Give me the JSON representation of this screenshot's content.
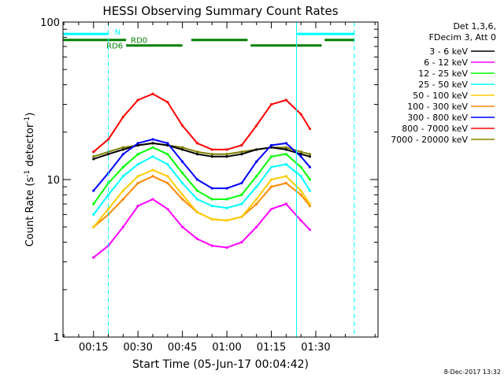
{
  "chart_data": {
    "type": "line",
    "title": "HESSI Observing Summary Count Rates",
    "xlabel": "Start Time (05-Jun-17 00:04:42)",
    "ylabel_main": "Count Rate (s",
    "ylabel_exp": "-1",
    "ylabel_mid": " detector",
    "ylabel_exp2": "-1",
    "ylabel_end": ")",
    "yscale": "log",
    "ylim": [
      1,
      100
    ],
    "xlim_min": [
      4.7,
      111
    ],
    "y_ticks": [
      {
        "v": 1,
        "label": "1"
      },
      {
        "v": 10,
        "label": "10"
      },
      {
        "v": 100,
        "label": "100"
      }
    ],
    "x_ticks": [
      {
        "v": 15,
        "label": "00:15"
      },
      {
        "v": 30,
        "label": "00:30"
      },
      {
        "v": 45,
        "label": "00:45"
      },
      {
        "v": 60,
        "label": "01:00"
      },
      {
        "v": 75,
        "label": "01:15"
      },
      {
        "v": 90,
        "label": "01:30"
      }
    ],
    "legend": {
      "placement": "right",
      "header1": "Det 1,3,6,",
      "header2": "FDecim 3, Att 0"
    },
    "series": [
      {
        "name": "3 - 6 keV",
        "color": "#000000",
        "x": [
          15,
          20,
          25,
          30,
          35,
          40,
          45,
          50,
          55,
          60,
          65,
          70,
          75,
          80,
          85,
          88
        ],
        "y": [
          13.5,
          14.5,
          15.5,
          16.5,
          17,
          16.5,
          15.5,
          14.5,
          14,
          14,
          14.5,
          15.5,
          16,
          15.5,
          14.5,
          14
        ]
      },
      {
        "name": "6 - 12 keV",
        "color": "#ff00ff",
        "x": [
          15,
          20,
          25,
          30,
          35,
          40,
          45,
          50,
          55,
          60,
          65,
          70,
          75,
          80,
          85,
          88
        ],
        "y": [
          3.2,
          3.8,
          5,
          6.8,
          7.5,
          6.5,
          5,
          4.2,
          3.8,
          3.7,
          4,
          5,
          6.5,
          7,
          5.5,
          4.8
        ]
      },
      {
        "name": "12 - 25 keV",
        "color": "#00ff00",
        "x": [
          15,
          20,
          25,
          30,
          35,
          40,
          45,
          50,
          55,
          60,
          65,
          70,
          75,
          80,
          85,
          88
        ],
        "y": [
          7,
          9.5,
          12,
          14.5,
          16,
          14.5,
          11,
          8.5,
          7.5,
          7.5,
          8,
          10.5,
          14,
          14.5,
          12,
          10
        ]
      },
      {
        "name": "25 - 50 keV",
        "color": "#00ffff",
        "x": [
          15,
          20,
          25,
          30,
          35,
          40,
          45,
          50,
          55,
          60,
          65,
          70,
          75,
          80,
          85,
          88
        ],
        "y": [
          6,
          8,
          10.5,
          12.5,
          14,
          12.5,
          9.5,
          7.5,
          6.8,
          6.6,
          7,
          9,
          12,
          12.5,
          10.5,
          8.5
        ]
      },
      {
        "name": "50 - 100 keV",
        "color": "#ffcc00",
        "x": [
          15,
          20,
          25,
          30,
          35,
          40,
          45,
          50,
          55,
          60,
          65,
          70,
          75,
          80,
          85,
          88
        ],
        "y": [
          5,
          6.5,
          8.5,
          10.5,
          11.5,
          10.5,
          8,
          6.2,
          5.6,
          5.5,
          5.8,
          7.5,
          10,
          10.5,
          8.5,
          7
        ]
      },
      {
        "name": "100 - 300 keV",
        "color": "#ff8800",
        "x": [
          15,
          20,
          25,
          30,
          35,
          40,
          45,
          50,
          55,
          60,
          65,
          70,
          75,
          80,
          85,
          88
        ],
        "y": [
          5,
          6,
          7.5,
          9.5,
          10.5,
          9.5,
          7.5,
          6.2,
          5.6,
          5.5,
          5.8,
          7,
          9,
          9.5,
          8,
          6.8
        ]
      },
      {
        "name": "300 - 800 keV",
        "color": "#0000ff",
        "x": [
          15,
          20,
          25,
          30,
          35,
          40,
          45,
          50,
          55,
          60,
          65,
          70,
          75,
          80,
          85,
          88
        ],
        "y": [
          8.5,
          11,
          14.5,
          17,
          18,
          17,
          13,
          10,
          8.8,
          8.8,
          9.5,
          13,
          16.5,
          17,
          14,
          12
        ]
      },
      {
        "name": "800 - 7000 keV",
        "color": "#ff0000",
        "x": [
          15,
          20,
          25,
          30,
          35,
          40,
          45,
          50,
          55,
          60,
          65,
          70,
          75,
          80,
          85,
          88
        ],
        "y": [
          15,
          18,
          25,
          32,
          35,
          31,
          22,
          17,
          15.5,
          15.5,
          16.5,
          22,
          30,
          32,
          26,
          21
        ]
      },
      {
        "name": "7000 - 20000 keV",
        "color": "#808000",
        "x": [
          15,
          20,
          25,
          30,
          35,
          40,
          45,
          50,
          55,
          60,
          65,
          70,
          75,
          80,
          85,
          88
        ],
        "y": [
          14,
          15,
          16,
          16.5,
          17,
          16.5,
          16,
          15,
          14.5,
          14.5,
          15,
          15.5,
          16,
          16,
          15,
          14.5
        ]
      }
    ],
    "flags": [
      {
        "name": "N",
        "color": "#00ffff",
        "y_rate": 84,
        "segments": [
          [
            4.7,
            20
          ],
          [
            83.5,
            103
          ]
        ]
      },
      {
        "name": "RD0",
        "color": "#008000",
        "y_rate": 77,
        "segments": [
          [
            4.7,
            26
          ],
          [
            48,
            67
          ],
          [
            93,
            103
          ]
        ]
      },
      {
        "name": "RD6",
        "color": "#008000",
        "y_rate": 71,
        "segments": [
          [
            26,
            45
          ],
          [
            68,
            92
          ]
        ]
      }
    ],
    "vlines": [
      {
        "v": 4.7,
        "style": "solid",
        "color": "#00ffff"
      },
      {
        "v": 20,
        "style": "dashed",
        "color": "#00ffff"
      },
      {
        "v": 83.5,
        "style": "solid",
        "color": "#00ffff"
      },
      {
        "v": 103,
        "style": "dashed",
        "color": "#00ffff"
      }
    ]
  },
  "footer_date": "8-Dec-2017 13:32"
}
